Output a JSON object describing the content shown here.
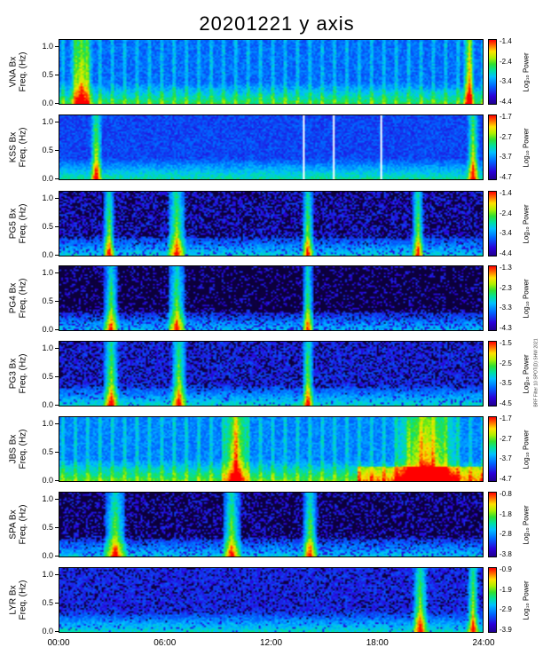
{
  "title": "20201221  y  axis",
  "side_note": "BRF Filter 10 SPOT(D) SHW 2021",
  "colors": {
    "background": "#ffffff",
    "frame": "#000000",
    "cbar_low": "#20008f",
    "cbar_high": "#ff0000"
  },
  "chart_data": {
    "type": "heatmap",
    "x_ticks": [
      "00:00",
      "06:00",
      "12:00",
      "18:00",
      "24:00"
    ],
    "xlim": [
      "00:00",
      "24:00"
    ],
    "ylim": [
      0.0,
      1.0
    ],
    "y_ticks": [
      "0.0",
      "0.5",
      "1.0"
    ],
    "colorbar_label": "Log₁₀ Power",
    "panels": [
      {
        "station": "VNA Bx",
        "ylabel2": "Freq. (Hz)",
        "cbar_ticks": [
          "-1.4",
          "-2.4",
          "-3.4",
          "-4.4"
        ]
      },
      {
        "station": "KSS Bx",
        "ylabel2": "Freq. (Hz)",
        "cbar_ticks": [
          "-1.7",
          "-2.7",
          "-3.7",
          "-4.7"
        ]
      },
      {
        "station": "PG5 Bx",
        "ylabel2": "Freq. (Hz)",
        "cbar_ticks": [
          "-1.4",
          "-2.4",
          "-3.4",
          "-4.4"
        ]
      },
      {
        "station": "PG4 Bx",
        "ylabel2": "Freq. (Hz)",
        "cbar_ticks": [
          "-1.3",
          "-2.3",
          "-3.3",
          "-4.3"
        ]
      },
      {
        "station": "PG3 Bx",
        "ylabel2": "Freq. (Hz)",
        "cbar_ticks": [
          "-1.5",
          "-2.5",
          "-3.5",
          "-4.5"
        ]
      },
      {
        "station": "JBS Bx",
        "ylabel2": "Freq. (Hz)",
        "cbar_ticks": [
          "-1.7",
          "-2.7",
          "-3.7",
          "-4.7"
        ]
      },
      {
        "station": "SPA Bx",
        "ylabel2": "Freq. (Hz)",
        "cbar_ticks": [
          "-0.8",
          "-1.8",
          "-2.8",
          "-3.8"
        ]
      },
      {
        "station": "LYR Bx",
        "ylabel2": "Freq. (Hz)",
        "cbar_ticks": [
          "-0.9",
          "-1.9",
          "-2.9",
          "-3.9"
        ]
      }
    ]
  }
}
